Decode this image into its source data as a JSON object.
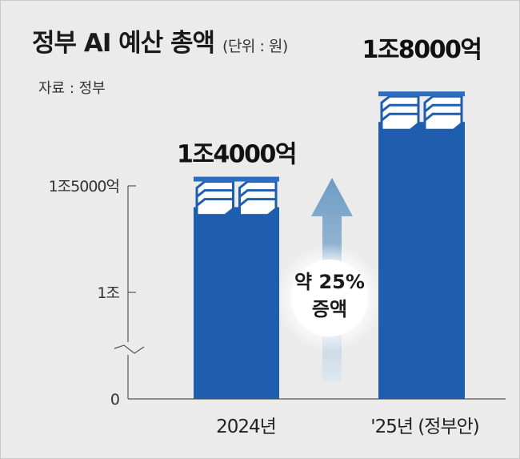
{
  "header": {
    "title": "정부 AI 예산 총액",
    "unit": "(단위 : 원)",
    "source": "자료 : 정부"
  },
  "colors": {
    "bar": "#1f5eae",
    "bar_top": "#2b6fc4",
    "arrow": "#7aa3c8",
    "background": "#ebebeb"
  },
  "chart_data": {
    "type": "bar",
    "title": "정부 AI 예산 총액",
    "unit": "(단위 : 원)",
    "categories": [
      "2024년",
      "'25년 (정부안)"
    ],
    "values": [
      14000,
      18000
    ],
    "data_labels": [
      "1조4000억",
      "1조8000억"
    ],
    "y_ticks": [
      {
        "value": 0,
        "label": "0"
      },
      {
        "value": 10000,
        "label": "1조"
      },
      {
        "value": 15000,
        "label": "1조5000억"
      }
    ],
    "ylim": [
      0,
      15000
    ],
    "y_axis_break": true,
    "annotation": {
      "line1": "약 25%",
      "line2": "증액"
    },
    "grid": false,
    "legend": "none"
  }
}
